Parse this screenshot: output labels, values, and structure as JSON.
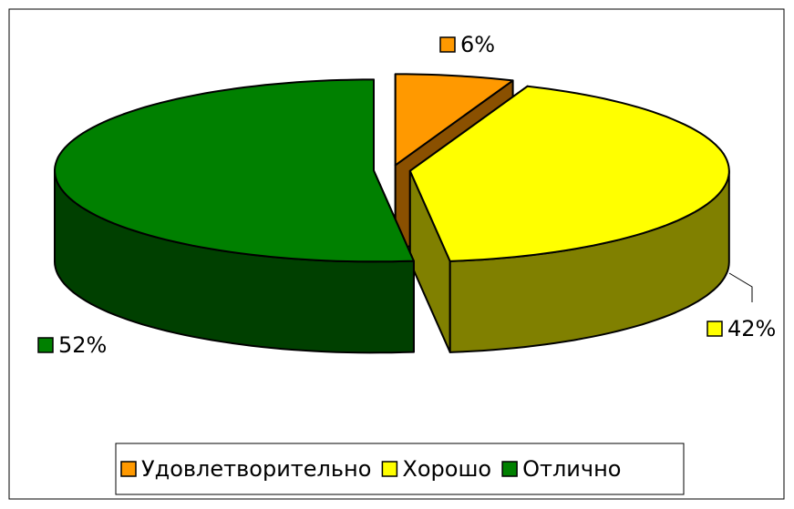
{
  "chart_data": {
    "type": "pie",
    "categories": [
      "Удовлетворительно",
      "Хорошо",
      "Отлично"
    ],
    "values": [
      6,
      42,
      52
    ],
    "value_labels": [
      "6%",
      "42%",
      "52%"
    ],
    "colors": [
      "#ff9900",
      "#ffff00",
      "#008000"
    ],
    "side_colors": [
      "#8a5000",
      "#808000",
      "#004000"
    ],
    "legend": "bottom"
  }
}
